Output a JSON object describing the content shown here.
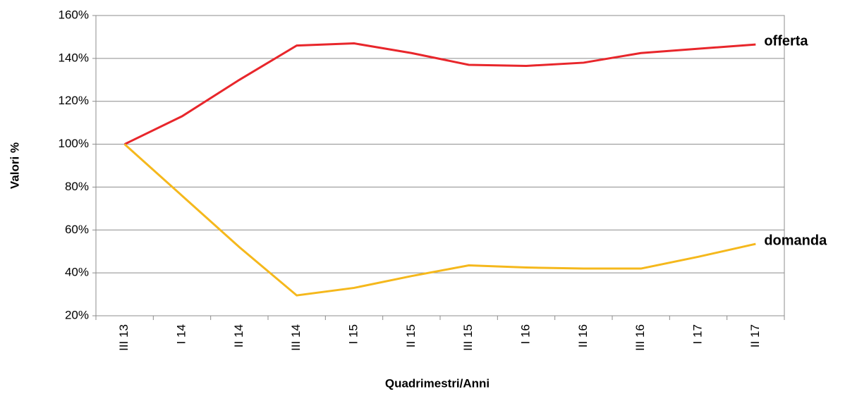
{
  "chart_data": {
    "type": "line",
    "xlabel": "Quadrimestri/Anni",
    "ylabel": "Valori %",
    "categories": [
      "III 13",
      "I 14",
      "II 14",
      "III 14",
      "I 15",
      "II 15",
      "III 15",
      "I 16",
      "II 16",
      "III 16",
      "I 17",
      "II 17"
    ],
    "series": [
      {
        "name": "offerta",
        "color": "#e8262b",
        "values": [
          100,
          113,
          130,
          146,
          147,
          142.5,
          137,
          136.5,
          138,
          142.5,
          144.5,
          146.5
        ]
      },
      {
        "name": "domanda",
        "color": "#f5b81c",
        "values": [
          100,
          76,
          52,
          29.5,
          33,
          38.5,
          43.5,
          42.5,
          42,
          42,
          47.5,
          53.5
        ]
      }
    ],
    "ylim": [
      20,
      160
    ],
    "yticks": [
      {
        "value": 20,
        "label": "20%"
      },
      {
        "value": 40,
        "label": "40%"
      },
      {
        "value": 60,
        "label": "60%"
      },
      {
        "value": 80,
        "label": "80%"
      },
      {
        "value": 100,
        "label": "100%"
      },
      {
        "value": 120,
        "label": "120%"
      },
      {
        "value": 140,
        "label": "140%"
      },
      {
        "value": 160,
        "label": "160%"
      }
    ],
    "grid": true
  }
}
